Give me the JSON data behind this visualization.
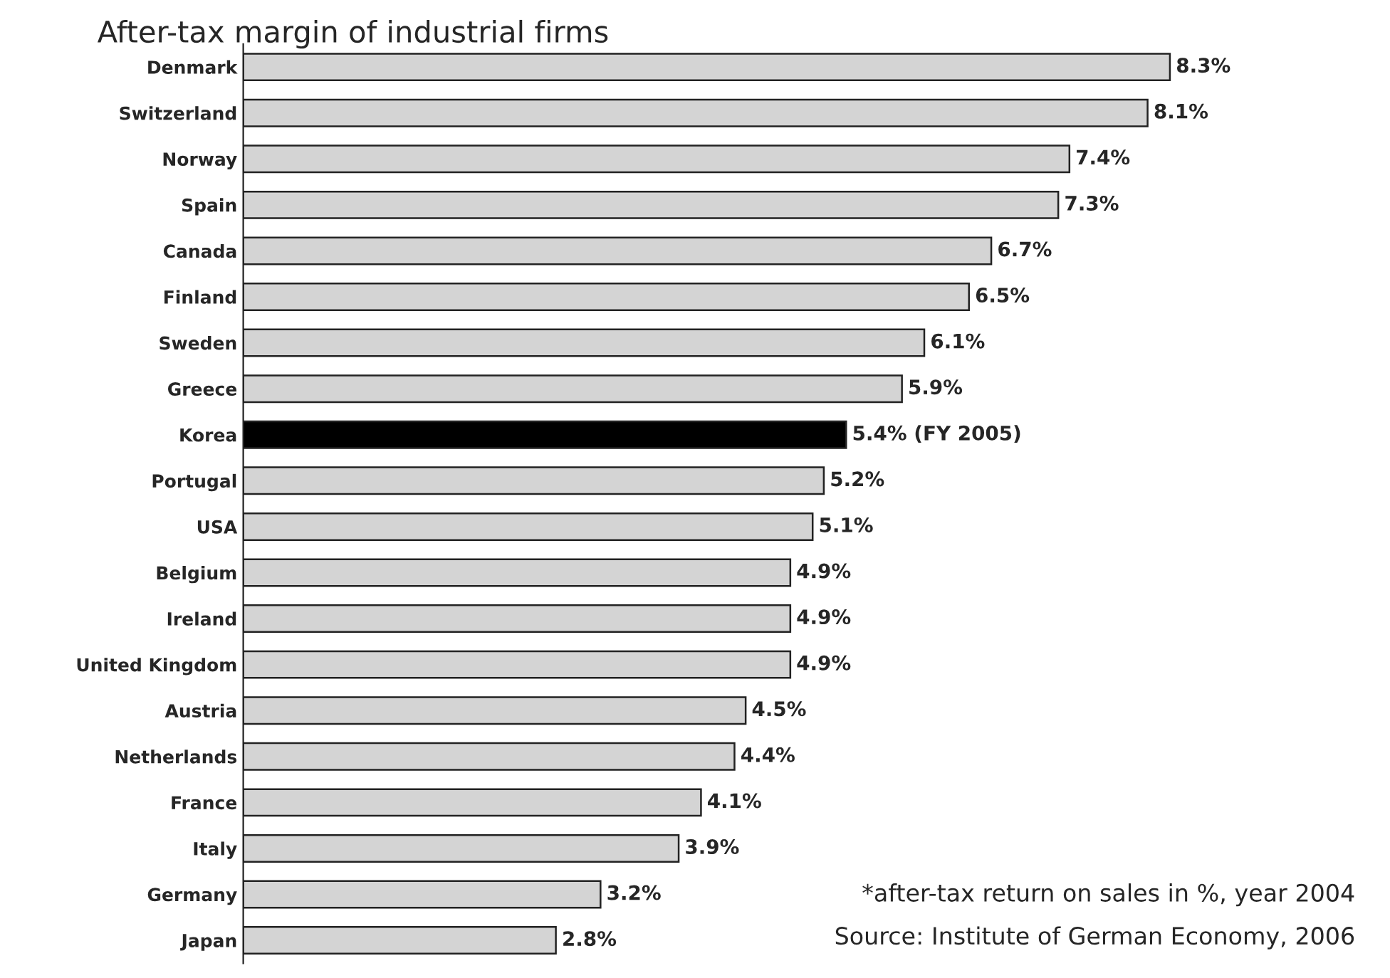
{
  "chart_data": {
    "type": "bar",
    "orientation": "horizontal",
    "title": "After-tax margin of industrial firms",
    "categories": [
      "Denmark",
      "Switzerland",
      "Norway",
      "Spain",
      "Canada",
      "Finland",
      "Sweden",
      "Greece",
      "Korea",
      "Portugal",
      "USA",
      "Belgium",
      "Ireland",
      "United Kingdom",
      "Austria",
      "Netherlands",
      "France",
      "Italy",
      "Germany",
      "Japan"
    ],
    "values": [
      8.3,
      8.1,
      7.4,
      7.3,
      6.7,
      6.5,
      6.1,
      5.9,
      5.4,
      5.2,
      5.1,
      4.9,
      4.9,
      4.9,
      4.5,
      4.4,
      4.1,
      3.9,
      3.2,
      2.8
    ],
    "colors": [
      "#d4d4d4",
      "#d4d4d4",
      "#d4d4d4",
      "#d4d4d4",
      "#d4d4d4",
      "#d4d4d4",
      "#d4d4d4",
      "#d4d4d4",
      "#000000",
      "#d4d4d4",
      "#d4d4d4",
      "#d4d4d4",
      "#d4d4d4",
      "#d4d4d4",
      "#d4d4d4",
      "#d4d4d4",
      "#d4d4d4",
      "#d4d4d4",
      "#d4d4d4",
      "#d4d4d4"
    ],
    "value_labels": [
      "8.3%",
      "8.1%",
      "7.4%",
      "7.3%",
      "6.7%",
      "6.5%",
      "6.1%",
      "5.9%",
      "5.4% (FY 2005)",
      "5.2%",
      "5.1%",
      "4.9%",
      "4.9%",
      "4.9%",
      "4.5%",
      "4.4%",
      "4.1%",
      "3.9%",
      "3.2%",
      "2.8%"
    ],
    "annotations": [
      "*after-tax return on sales in %, year 2004",
      "Source: Institute of German Economy, 2006"
    ],
    "grid": false,
    "legend": false
  }
}
